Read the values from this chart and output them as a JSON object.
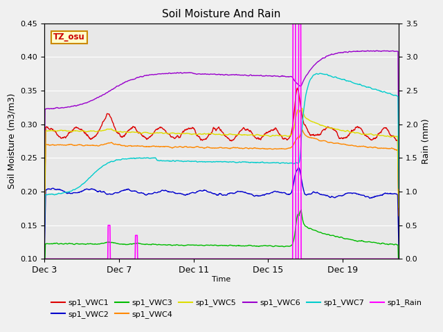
{
  "title": "Soil Moisture And Rain",
  "xlabel": "Time",
  "ylabel_left": "Soil Moisture (m3/m3)",
  "ylabel_right": "Rain (mm)",
  "ylim_left": [
    0.1,
    0.45
  ],
  "ylim_right": [
    0.0,
    3.5
  ],
  "yticks_left": [
    0.1,
    0.15,
    0.2,
    0.25,
    0.3,
    0.35,
    0.4,
    0.45
  ],
  "yticks_right": [
    0.0,
    0.5,
    1.0,
    1.5,
    2.0,
    2.5,
    3.0,
    3.5
  ],
  "bg_color": "#f0f0f0",
  "plot_bg": "#e8e8e8",
  "station_label": "TZ_osu",
  "legend_entries": [
    {
      "label": "sp1_VWC1",
      "color": "#dd0000"
    },
    {
      "label": "sp1_VWC2",
      "color": "#0000cc"
    },
    {
      "label": "sp1_VWC3",
      "color": "#00bb00"
    },
    {
      "label": "sp1_VWC4",
      "color": "#ff8800"
    },
    {
      "label": "sp1_VWC5",
      "color": "#dddd00"
    },
    {
      "label": "sp1_VWC6",
      "color": "#9900cc"
    },
    {
      "label": "sp1_VWC7",
      "color": "#00cccc"
    },
    {
      "label": "sp1_Rain",
      "color": "#ff00ff"
    }
  ],
  "xtick_labels": [
    "Dec 3",
    "Dec 7",
    "Dec 11",
    "Dec 15",
    "Dec 19"
  ],
  "xtick_positions": [
    0,
    4,
    8,
    12,
    16
  ],
  "xlim": [
    0,
    19
  ]
}
